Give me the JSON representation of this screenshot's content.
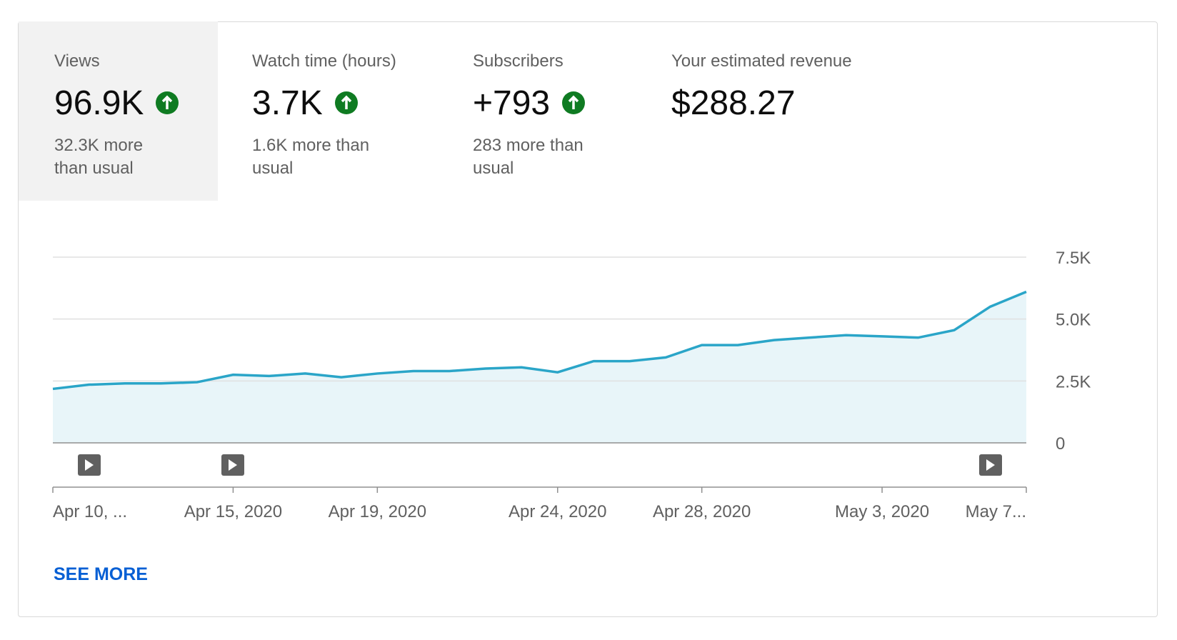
{
  "metrics": [
    {
      "title": "Views",
      "value": "96.9K",
      "note": "32.3K more than usual"
    },
    {
      "title": "Watch time (hours)",
      "value": "3.7K",
      "note": "1.6K more than usual"
    },
    {
      "title": "Subscribers",
      "value": "+793",
      "note": "283 more than usual"
    },
    {
      "title": "Your estimated revenue",
      "value": "$288.27"
    }
  ],
  "chart_data": {
    "type": "area",
    "categories": [
      "Apr 10, ...",
      null,
      null,
      null,
      null,
      "Apr 15, 2020",
      null,
      null,
      null,
      "Apr 19, 2020",
      null,
      null,
      null,
      null,
      "Apr 24, 2020",
      null,
      null,
      null,
      "Apr 28, 2020",
      null,
      null,
      null,
      null,
      "May 3, 2020",
      null,
      null,
      null,
      "May 7..."
    ],
    "values": [
      2180,
      2350,
      2400,
      2400,
      2450,
      2750,
      2700,
      2800,
      2650,
      2800,
      2900,
      2900,
      3000,
      3050,
      2850,
      3300,
      3300,
      3450,
      3950,
      3950,
      4150,
      4250,
      4350,
      4300,
      4250,
      4550,
      5500,
      6100
    ],
    "color": "#2aa5c8",
    "ylim": [
      0,
      7500
    ],
    "yticks": [
      0,
      {
        "value": 2500,
        "label": "2.5K"
      },
      {
        "value": 5000,
        "label": "5.0K"
      },
      {
        "value": 7500,
        "label": "7.5K"
      }
    ],
    "grid": true
  },
  "see_more": "SEE MORE"
}
